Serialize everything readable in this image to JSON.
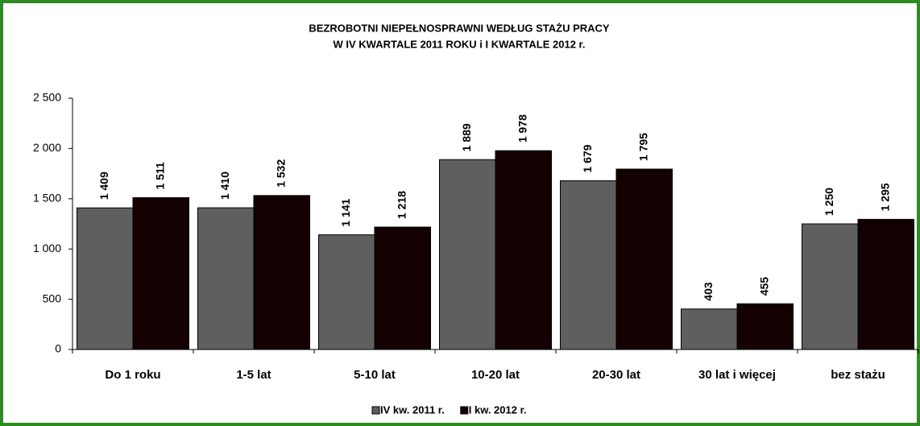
{
  "chart_data": {
    "type": "bar",
    "title": "BEZROBOTNI NIEPEŁNOSPRAWNI WEDŁUG  STAŻU  PRACY",
    "subtitle": "W IV KWARTALE 2011 ROKU  i I KWARTALE 2012 r.",
    "categories": [
      "Do 1 roku",
      "1-5 lat",
      "5-10 lat",
      "10-20 lat",
      "20-30 lat",
      "30 lat i więcej",
      "bez stażu"
    ],
    "series": [
      {
        "name": "IV kw. 2011 r.",
        "color": "#5f5f5f",
        "values": [
          1409,
          1410,
          1141,
          1889,
          1679,
          403,
          1250
        ],
        "value_labels": [
          "1 409",
          "1 410",
          "1 141",
          "1 889",
          "1 679",
          "403",
          "1 250"
        ]
      },
      {
        "name": "I kw. 2012 r.",
        "color": "#140000",
        "values": [
          1511,
          1532,
          1218,
          1978,
          1795,
          455,
          1295
        ],
        "value_labels": [
          "1 511",
          "1 532",
          "1 218",
          "1 978",
          "1 795",
          "455",
          "1 295"
        ]
      }
    ],
    "ylim": [
      0,
      2500
    ],
    "yticks": [
      0,
      500,
      {
        "value": 1000,
        "label": "1 000"
      },
      {
        "value": 1500,
        "label": "1 500"
      },
      {
        "value": 2000,
        "label": "2 000"
      },
      {
        "value": 2500,
        "label": "2 500"
      }
    ],
    "legend": "bottom"
  }
}
